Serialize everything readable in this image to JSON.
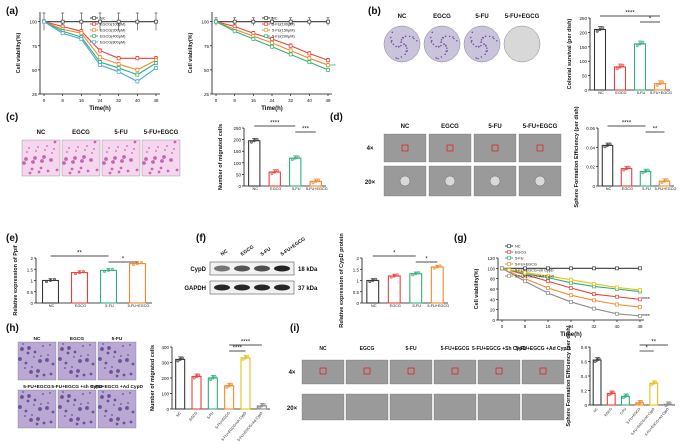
{
  "panel_labels": [
    "(a)",
    "(b)",
    "(c)",
    "(d)",
    "(e)",
    "(f)",
    "(g)",
    "(h)",
    "(i)"
  ],
  "colors": {
    "nc": "#3a3a3a",
    "egcg": "#e8413b",
    "fu": "#2fb07a",
    "combo": "#f08a2a",
    "shcyp": "#e6c21a",
    "adcyp": "#8a8a8a",
    "crystal": "#7b55a0",
    "he": "#c74fa3"
  },
  "groups": {
    "short": [
      "NC",
      "EGCG",
      "5-FU",
      "5-FU+EGCG"
    ],
    "long": [
      "NC",
      "EGCG",
      "5-FU",
      "5-FU+EGCG",
      "5-FU+EGCG+sh CypD",
      "5-FU+EGCG+Ad CypD"
    ]
  },
  "image_labels": {
    "b": [
      "NC",
      "EGCG",
      "5-FU",
      "5-FU+EGCG"
    ],
    "c": [
      "NC",
      "EGCG",
      "5-FU",
      "5-FU+EGCG"
    ],
    "d": [
      "NC",
      "EGCG",
      "5-FU",
      "5-FU+EGCG"
    ],
    "d_mag": [
      "4×",
      "20×"
    ],
    "h": [
      "NC",
      "EGCG",
      "5-FU",
      "5-FU+EGCG",
      "5-FU+EGCG +sh CypD",
      "5-FU+EGCG +Ad CypD"
    ],
    "i": [
      "NC",
      "EGCG",
      "5-FU",
      "5-FU+EGCG",
      "5-FU+EGCG +Sh CypD",
      "5-FU+EGCG +Ad CypD"
    ],
    "i_mag": [
      "4×",
      "20×"
    ]
  },
  "western": {
    "lanes": [
      "NC",
      "EGCG",
      "5-FU",
      "5-FU+EGCG"
    ],
    "bands": [
      {
        "name": "CypD",
        "size": "18 kDa",
        "intensity": [
          0.55,
          0.7,
          0.72,
          0.92
        ]
      },
      {
        "name": "GAPDH",
        "size": "37 kDa",
        "intensity": [
          0.9,
          0.9,
          0.9,
          0.9
        ]
      }
    ]
  },
  "chart_data": [
    {
      "id": "a1",
      "type": "line",
      "xlabel": "Time(h)",
      "ylabel": "Cell viability(%)",
      "x": [
        0,
        8,
        16,
        24,
        32,
        40,
        48
      ],
      "ylim": [
        25,
        110
      ],
      "yticks": [
        25,
        50,
        75,
        100
      ],
      "xticks": [
        0,
        8,
        16,
        24,
        32,
        40,
        48
      ],
      "series": [
        {
          "name": "NC",
          "values": [
            100,
            100,
            100,
            100,
            100,
            100,
            100
          ],
          "err": 9
        },
        {
          "name": "EGCG(100μM)",
          "values": [
            100,
            95,
            90,
            70,
            62,
            62,
            62
          ],
          "err": 2
        },
        {
          "name": "EGCG(200μM)",
          "values": [
            100,
            92,
            88,
            63,
            56,
            50,
            60
          ],
          "err": 2
        },
        {
          "name": "EGCG(400μM)",
          "values": [
            100,
            90,
            84,
            58,
            52,
            45,
            57
          ],
          "err": 2
        },
        {
          "name": "EGCG(800μM)",
          "values": [
            100,
            88,
            82,
            55,
            48,
            38,
            52
          ],
          "err": 2
        }
      ]
    },
    {
      "id": "a2",
      "type": "line",
      "xlabel": "Time(h)",
      "ylabel": "Cell viability(%)",
      "x": [
        0,
        8,
        16,
        24,
        32,
        40,
        48
      ],
      "ylim": [
        25,
        110
      ],
      "yticks": [
        25,
        50,
        75,
        100
      ],
      "xticks": [
        0,
        8,
        16,
        24,
        32,
        40,
        48
      ],
      "annotation": "***",
      "series": [
        {
          "name": "NC",
          "values": [
            100,
            100,
            100,
            100,
            100,
            100,
            100
          ],
          "err": 4
        },
        {
          "name": "5-FU(100μM)",
          "values": [
            100,
            95,
            88,
            82,
            75,
            67,
            60
          ],
          "err": 2
        },
        {
          "name": "5-FU(150μM)",
          "values": [
            100,
            92,
            85,
            78,
            70,
            62,
            55
          ],
          "err": 2
        },
        {
          "name": "5-FU(200μM)",
          "values": [
            100,
            90,
            82,
            74,
            66,
            58,
            50
          ],
          "err": 2
        }
      ]
    },
    {
      "id": "b",
      "type": "bar",
      "ylabel": "Colonial survival  (per dish)",
      "categories": [
        "NC",
        "EGCG",
        "5-FU",
        "5-FU+EGCG"
      ],
      "values": [
        210,
        80,
        160,
        22
      ],
      "ylim": [
        0,
        250
      ],
      "yticks": [
        0,
        50,
        100,
        150,
        200,
        250
      ],
      "sig": [
        {
          "from": 0,
          "to": 3,
          "label": "****"
        },
        {
          "from": 2,
          "to": 3,
          "label": "*"
        }
      ]
    },
    {
      "id": "c",
      "type": "bar",
      "ylabel": "Number of migrated cells",
      "categories": [
        "NC",
        "EGCG",
        "5-FU",
        "5-FU+EGCG"
      ],
      "values": [
        195,
        60,
        120,
        20
      ],
      "ylim": [
        0,
        250
      ],
      "yticks": [
        0,
        50,
        100,
        150,
        200,
        250
      ],
      "sig": [
        {
          "from": 0,
          "to": 2,
          "label": "****"
        },
        {
          "from": 2,
          "to": 3,
          "label": "***"
        }
      ]
    },
    {
      "id": "d",
      "type": "bar",
      "ylabel": "Sphere Formation Efficiency  (per dish)",
      "categories": [
        "NC",
        "EGCG",
        "5-FU",
        "5-FU+EGCG"
      ],
      "values": [
        0.042,
        0.018,
        0.015,
        0.005
      ],
      "ylim": [
        0,
        0.06
      ],
      "yticks": [
        0,
        0.02,
        0.04,
        0.06
      ],
      "sig": [
        {
          "from": 0,
          "to": 2,
          "label": "****"
        },
        {
          "from": 2,
          "to": 3,
          "label": "**"
        }
      ]
    },
    {
      "id": "e",
      "type": "bar",
      "ylabel": "Relative expression of Ppif",
      "categories": [
        "NC",
        "EGCG",
        "5-FU",
        "5-FU+EGCG"
      ],
      "values": [
        1.0,
        1.35,
        1.45,
        1.75
      ],
      "ylim": [
        0,
        2.0
      ],
      "yticks": [
        0,
        0.5,
        1.0,
        1.5,
        2.0
      ],
      "sig": [
        {
          "from": 0,
          "to": 2,
          "label": "**"
        },
        {
          "from": 2,
          "to": 3,
          "label": "*"
        }
      ]
    },
    {
      "id": "f",
      "type": "bar",
      "ylabel": "Relative expression of CypD protein",
      "categories": [
        "NC",
        "EGCG",
        "5-FU",
        "5-FU+EGCG"
      ],
      "values": [
        1.0,
        1.2,
        1.3,
        1.6
      ],
      "ylim": [
        0,
        2.0
      ],
      "yticks": [
        0,
        0.5,
        1.0,
        1.5,
        2.0
      ],
      "sig": [
        {
          "from": 0,
          "to": 2,
          "label": "*"
        },
        {
          "from": 2,
          "to": 3,
          "label": "*"
        }
      ]
    },
    {
      "id": "g",
      "type": "line",
      "xlabel": "Time(h)",
      "ylabel": "Cell viability(%)",
      "x": [
        0,
        8,
        16,
        24,
        32,
        40,
        48
      ],
      "ylim": [
        0,
        120
      ],
      "yticks": [
        0,
        20,
        40,
        60,
        80,
        100,
        120
      ],
      "xticks": [
        0,
        8,
        16,
        24,
        32,
        40,
        48
      ],
      "series": [
        {
          "name": "NC",
          "values": [
            100,
            100,
            100,
            100,
            100,
            100,
            100
          ],
          "err": 3
        },
        {
          "name": "EGCG",
          "values": [
            100,
            88,
            75,
            62,
            50,
            45,
            40
          ],
          "err": 3
        },
        {
          "name": "5-FU",
          "values": [
            100,
            90,
            82,
            72,
            65,
            60,
            55
          ],
          "err": 3
        },
        {
          "name": "5-FU+EGCG",
          "values": [
            100,
            80,
            62,
            48,
            38,
            30,
            25
          ],
          "err": 3
        },
        {
          "name": "5-FU+EGCG+sh CypD",
          "values": [
            100,
            92,
            85,
            78,
            70,
            63,
            58
          ],
          "err": 3
        },
        {
          "name": "5-FU+EGCG+Ad CypD",
          "values": [
            100,
            75,
            52,
            35,
            22,
            12,
            8
          ],
          "err": 3
        }
      ],
      "annotations": [
        "****",
        "****"
      ]
    },
    {
      "id": "h",
      "type": "bar",
      "ylabel": "Number of migrated cells",
      "categories": [
        "NC",
        "EGCG",
        "5-FU",
        "5-FU+EGCG",
        "5-FU+EGCG+sh CypD",
        "5-FU+EGCG+Ad CypD"
      ],
      "values": [
        320,
        210,
        200,
        150,
        330,
        20
      ],
      "ylim": [
        0,
        400
      ],
      "yticks": [
        0,
        100,
        200,
        300,
        400
      ],
      "sig": [
        {
          "from": 3,
          "to": 5,
          "label": "****"
        },
        {
          "from": 3,
          "to": 4,
          "label": "****"
        }
      ]
    },
    {
      "id": "i",
      "type": "bar",
      "ylabel": "Sphere Formation Efficiency  (per dish)",
      "categories": [
        "NC",
        "EGCG",
        "5-FU",
        "5-FU+EGCG",
        "5-FU+EGCG+sh CypD",
        "5-FU+EGCG+Ad CypD"
      ],
      "values": [
        0.62,
        0.16,
        0.12,
        0.03,
        0.3,
        0.01
      ],
      "ylim": [
        0,
        0.8
      ],
      "yticks": [
        0,
        0.2,
        0.4,
        0.6,
        0.8
      ],
      "sig": [
        {
          "from": 3,
          "to": 5,
          "label": "**"
        },
        {
          "from": 3,
          "to": 4,
          "label": "*"
        }
      ]
    }
  ]
}
